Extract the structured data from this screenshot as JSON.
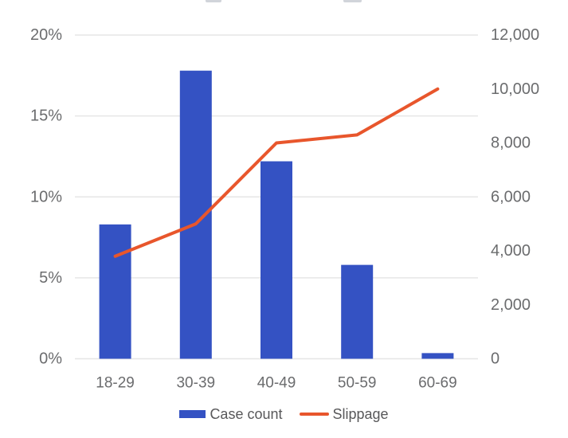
{
  "chart_data": {
    "type": "combo_bar_line",
    "title": "",
    "categories": [
      "18-29",
      "30-39",
      "40-49",
      "50-59",
      "60-69"
    ],
    "series": [
      {
        "name": "Case count",
        "type": "bar",
        "axis": "left",
        "color": "#3452c3",
        "values": [
          8.3,
          17.8,
          12.2,
          5.8,
          0.35
        ]
      },
      {
        "name": "Slippage",
        "type": "line",
        "axis": "right",
        "color": "#e8562c",
        "values": [
          3800,
          5000,
          8000,
          8300,
          10000
        ]
      }
    ],
    "left_axis": {
      "unit": "%",
      "min": 0,
      "max": 20,
      "tick_values": [
        0,
        5,
        10,
        15,
        20
      ],
      "tick_labels": [
        "0%",
        "5%",
        "10%",
        "15%",
        "20%"
      ]
    },
    "right_axis": {
      "min": 0,
      "max": 12000,
      "tick_values": [
        0,
        2000,
        4000,
        6000,
        8000,
        10000,
        12000
      ],
      "tick_labels": [
        "0",
        "2,000",
        "4,000",
        "6,000",
        "8,000",
        "10,000",
        "12,000"
      ]
    },
    "grid": "horizontal",
    "legend_position": "bottom",
    "colors": {
      "bar": "#3452c3",
      "line": "#e8562c",
      "gridline": "#e6e6e6",
      "axis_text": "#6b6c6e",
      "legend_text": "#58585a",
      "background": "#ffffff"
    }
  }
}
